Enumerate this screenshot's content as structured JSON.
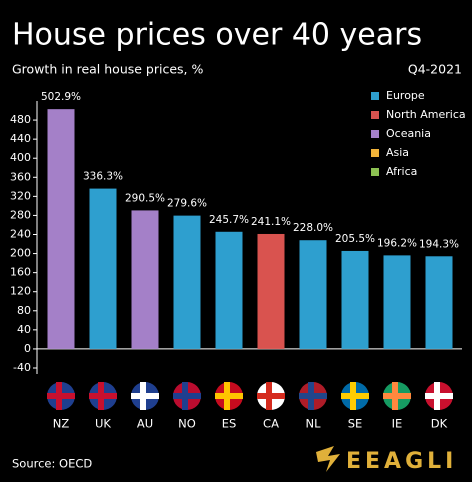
{
  "chart_data": {
    "type": "bar",
    "title": "House prices over 40 years",
    "subtitle": "Growth in real house prices, %",
    "date": "Q4-2021",
    "source": "Source: OECD",
    "brand": "EEAGLI",
    "categories": [
      "NZ",
      "UK",
      "AU",
      "NO",
      "ES",
      "CA",
      "NL",
      "SE",
      "IE",
      "DK"
    ],
    "series": [
      {
        "name": "Europe",
        "color": "#2e9fcf",
        "values": [
          null,
          336.3,
          null,
          279.6,
          245.7,
          null,
          228.0,
          205.5,
          196.2,
          194.3
        ],
        "value_labels": [
          null,
          "336.3%",
          null,
          "279.6%",
          "245.7%",
          null,
          "228.0%",
          "205.5%",
          "196.2%",
          "194.3%"
        ]
      },
      {
        "name": "North America",
        "color": "#d9534f",
        "values": [
          null,
          null,
          null,
          null,
          null,
          241.1,
          null,
          null,
          null,
          null
        ],
        "value_labels": [
          null,
          null,
          null,
          null,
          null,
          "241.1%",
          null,
          null,
          null,
          null
        ]
      },
      {
        "name": "Oceania",
        "color": "#a480c8",
        "values": [
          502.9,
          null,
          290.5,
          null,
          null,
          null,
          null,
          null,
          null,
          null
        ],
        "value_labels": [
          "502.9%",
          null,
          "290.5%",
          null,
          null,
          null,
          null,
          null,
          null,
          null
        ]
      },
      {
        "name": "Asia",
        "color": "#f2b43a",
        "values": [
          null,
          null,
          null,
          null,
          null,
          null,
          null,
          null,
          null,
          null
        ],
        "value_labels": [
          null,
          null,
          null,
          null,
          null,
          null,
          null,
          null,
          null,
          null
        ]
      },
      {
        "name": "Africa",
        "color": "#8cc152",
        "values": [
          null,
          null,
          null,
          null,
          null,
          null,
          null,
          null,
          null,
          null
        ],
        "value_labels": [
          null,
          null,
          null,
          null,
          null,
          null,
          null,
          null,
          null,
          null
        ]
      }
    ],
    "ylim": [
      -40,
      520
    ],
    "yticks": [
      -40,
      0,
      40,
      80,
      120,
      160,
      200,
      240,
      280,
      320,
      360,
      400,
      440,
      480
    ],
    "legend": "top-right"
  }
}
